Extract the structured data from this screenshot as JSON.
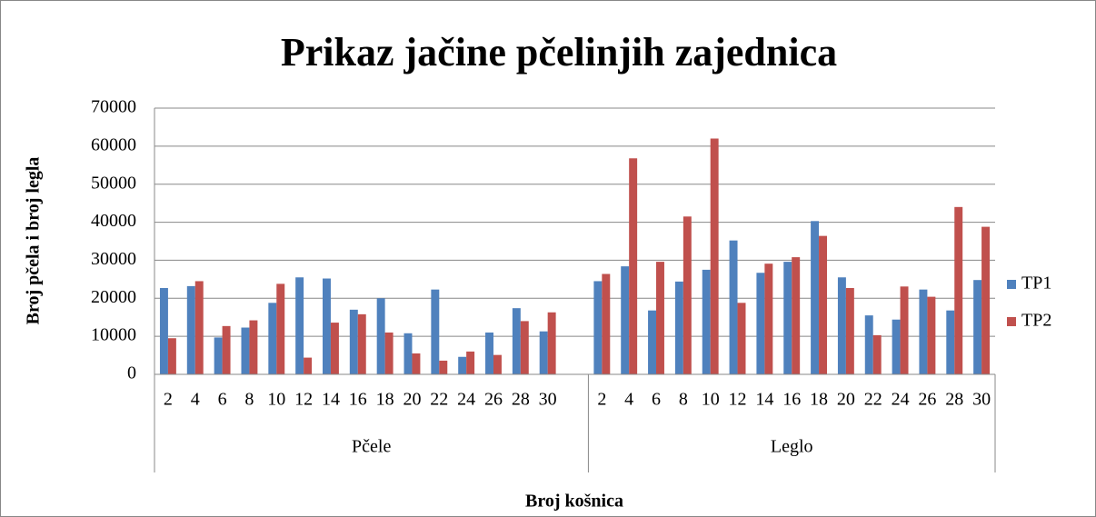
{
  "chart_data": {
    "type": "bar",
    "title": "Prikaz jačine pčelinjih zajednica",
    "y_label": "Broj pčela i broj legla",
    "x_label": "Broj košnica",
    "categories": [
      "2",
      "4",
      "6",
      "8",
      "10",
      "12",
      "14",
      "16",
      "18",
      "20",
      "22",
      "24",
      "26",
      "28",
      "30",
      null,
      "2",
      "4",
      "6",
      "8",
      "10",
      "12",
      "14",
      "16",
      "18",
      "20",
      "22",
      "24",
      "26",
      "28",
      "30"
    ],
    "groups": [
      {
        "name": "Pčele",
        "size": 16
      },
      {
        "name": "Leglo",
        "size": 15
      }
    ],
    "series": [
      {
        "name": "TP1",
        "color": "#4f81bd",
        "values": [
          22700,
          23200,
          9700,
          12300,
          18800,
          25500,
          25200,
          17000,
          20000,
          10800,
          22300,
          4600,
          11000,
          17400,
          11300,
          null,
          24500,
          28400,
          16800,
          24400,
          27500,
          35200,
          26700,
          29600,
          40300,
          25500,
          15500,
          14400,
          22300,
          16800,
          24800
        ]
      },
      {
        "name": "TP2",
        "color": "#c0504d",
        "values": [
          9500,
          24500,
          12700,
          14200,
          23800,
          4400,
          13600,
          15800,
          11000,
          5500,
          3600,
          6000,
          5100,
          14000,
          16300,
          null,
          26400,
          56800,
          29600,
          41500,
          62000,
          18800,
          29100,
          30800,
          36400,
          22700,
          10300,
          23100,
          20400,
          44000,
          38800
        ]
      }
    ],
    "ylim": [
      0,
      70000
    ],
    "yticks": [
      0,
      10000,
      20000,
      30000,
      40000,
      50000,
      60000,
      70000
    ],
    "grid": true,
    "legend": "right"
  }
}
